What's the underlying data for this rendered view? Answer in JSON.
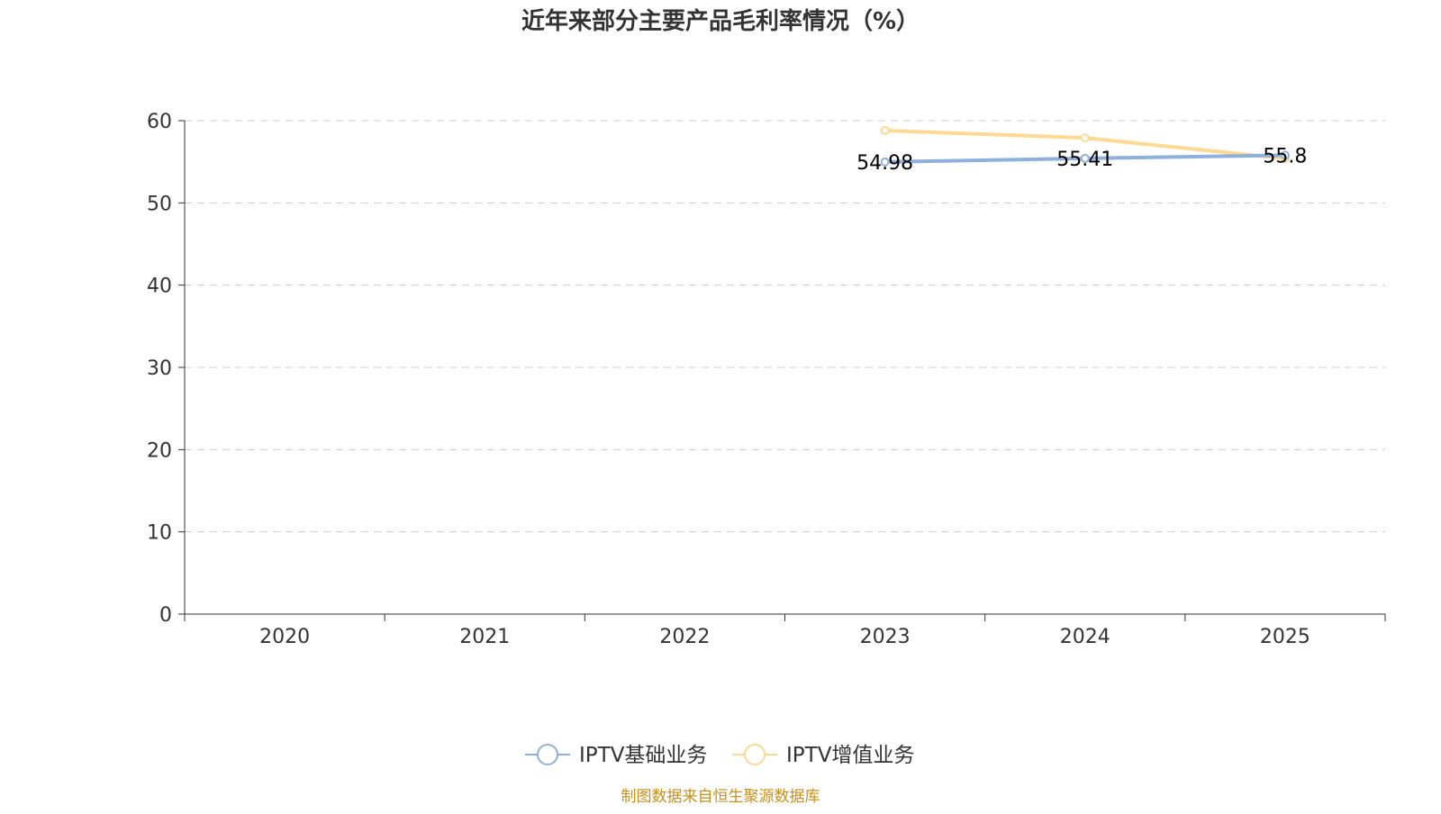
{
  "chart_data": {
    "type": "line",
    "title": "近年来部分主要产品毛利率情况（%）",
    "categories": [
      "2020",
      "2021",
      "2022",
      "2023",
      "2024",
      "2025"
    ],
    "ylim": [
      0,
      60
    ],
    "yticks": [
      0,
      10,
      20,
      30,
      40,
      50,
      60
    ],
    "grid": true,
    "legend_position": "bottom",
    "series": [
      {
        "name": "IPTV基础业务",
        "color": "#8eb0dd",
        "values": [
          null,
          null,
          null,
          54.98,
          55.41,
          55.8
        ],
        "labels": [
          "",
          "",
          "",
          "54.98",
          "55.41",
          "55.8"
        ]
      },
      {
        "name": "IPTV增值业务",
        "color": "#fed993",
        "values": [
          null,
          null,
          null,
          58.8,
          57.9,
          55.4
        ],
        "labels": []
      }
    ],
    "source": "制图数据来自恒生聚源数据库"
  }
}
